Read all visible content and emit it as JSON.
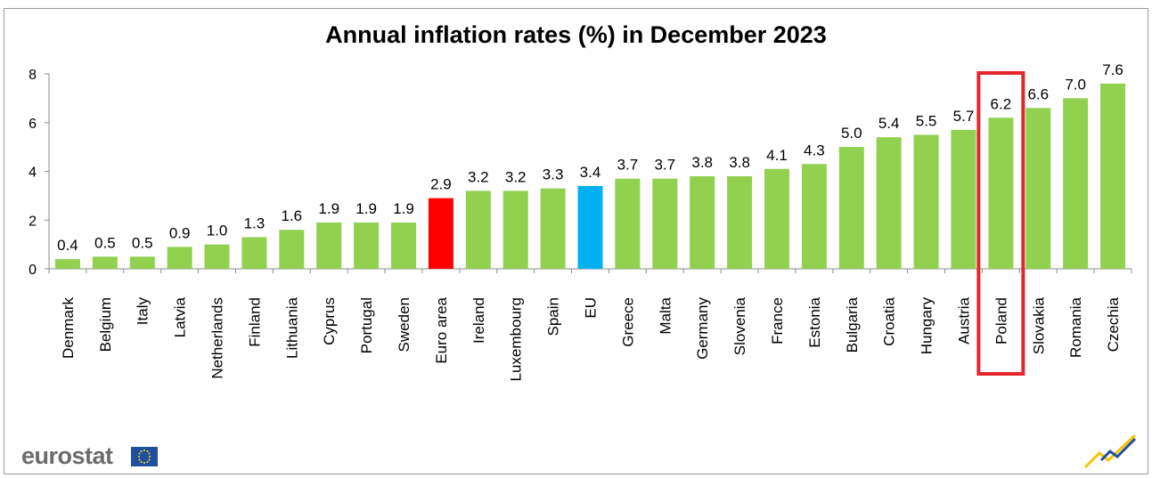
{
  "chart_data": {
    "type": "bar",
    "title": "Annual inflation rates (%) in December 2023",
    "ylim": [
      0,
      8
    ],
    "yticks": [
      0,
      2,
      4,
      6,
      8
    ],
    "grid": false,
    "categories": [
      "Denmark",
      "Belgium",
      "Italy",
      "Latvia",
      "Netherlands",
      "Finland",
      "Lithuania",
      "Cyprus",
      "Portugal",
      "Sweden",
      "Euro area",
      "Ireland",
      "Luxembourg",
      "Spain",
      "EU",
      "Greece",
      "Malta",
      "Germany",
      "Slovenia",
      "France",
      "Estonia",
      "Bulgaria",
      "Croatia",
      "Hungary",
      "Austria",
      "Poland",
      "Slovakia",
      "Romania",
      "Czechia"
    ],
    "values": [
      0.4,
      0.5,
      0.5,
      0.9,
      1.0,
      1.3,
      1.6,
      1.9,
      1.9,
      1.9,
      2.9,
      3.2,
      3.2,
      3.3,
      3.4,
      3.7,
      3.7,
      3.8,
      3.8,
      4.1,
      4.3,
      5.0,
      5.4,
      5.5,
      5.7,
      6.2,
      6.6,
      7.0,
      7.6
    ],
    "data_labels": [
      "0.4",
      "0.5",
      "0.5",
      "0.9",
      "1.0",
      "1.3",
      "1.6",
      "1.9",
      "1.9",
      "1.9",
      "2.9",
      "3.2",
      "3.2",
      "3.3",
      "3.4",
      "3.7",
      "3.7",
      "3.8",
      "3.8",
      "4.1",
      "4.3",
      "5.0",
      "5.4",
      "5.5",
      "5.7",
      "6.2",
      "6.6",
      "7.0",
      "7.6"
    ],
    "colors": {
      "default": "#92d050",
      "Euro area": "#ff0000",
      "EU": "#00b0f0"
    },
    "highlight": "Poland",
    "highlight_color": "#e3262b"
  },
  "footer": {
    "logo_text": "eurostat"
  }
}
